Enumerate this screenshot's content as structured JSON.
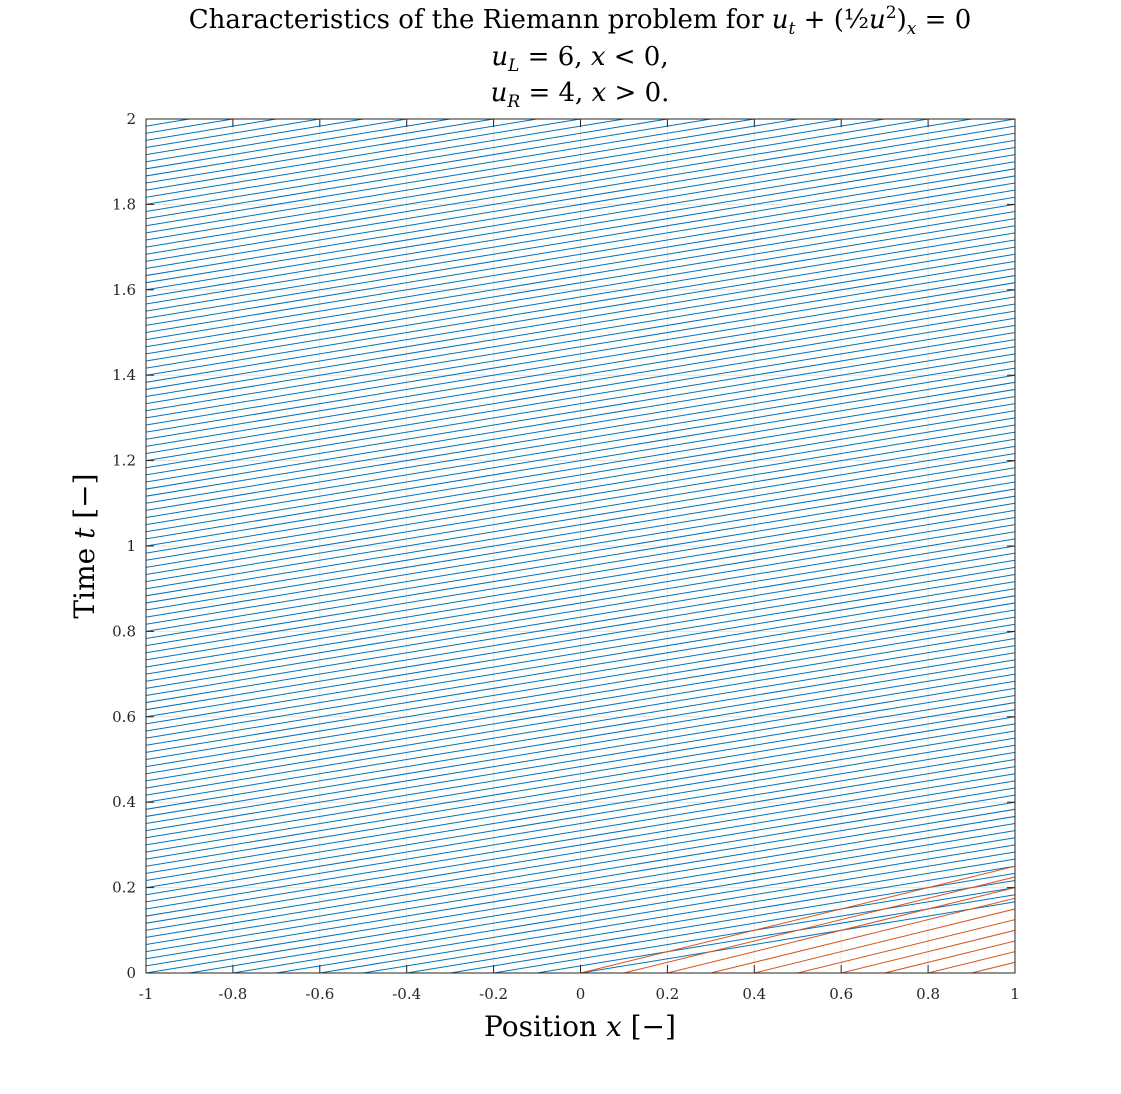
{
  "chart_data": {
    "type": "line",
    "title_lines": [
      "Characteristics of the Riemann problem for u_t + (½u²)_x = 0",
      "u_L = 6, x < 0,",
      "u_R = 4, x > 0."
    ],
    "xlabel": "Position x [−]",
    "ylabel": "Time t [−]",
    "xlim": [
      -1,
      1
    ],
    "ylim": [
      0,
      2
    ],
    "x_ticks": [
      "-1",
      "-0.8",
      "-0.6",
      "-0.4",
      "-0.2",
      "0",
      "0.2",
      "0.4",
      "0.6",
      "0.8",
      "1"
    ],
    "y_ticks": [
      "0",
      "0.2",
      "0.4",
      "0.6",
      "0.8",
      "1",
      "1.2",
      "1.4",
      "1.6",
      "1.8",
      "2"
    ],
    "grid": true,
    "u_left": 6,
    "u_right": 4,
    "series": [
      {
        "color": "#0072BD",
        "slope_dx_dt": 6,
        "x0_start": -13,
        "x0_end": 0,
        "x0_step": 0.1
      },
      {
        "color": "#D95319",
        "slope_dx_dt": 4,
        "x0_start": 0,
        "x0_end": 1,
        "x0_step": 0.1
      }
    ]
  }
}
